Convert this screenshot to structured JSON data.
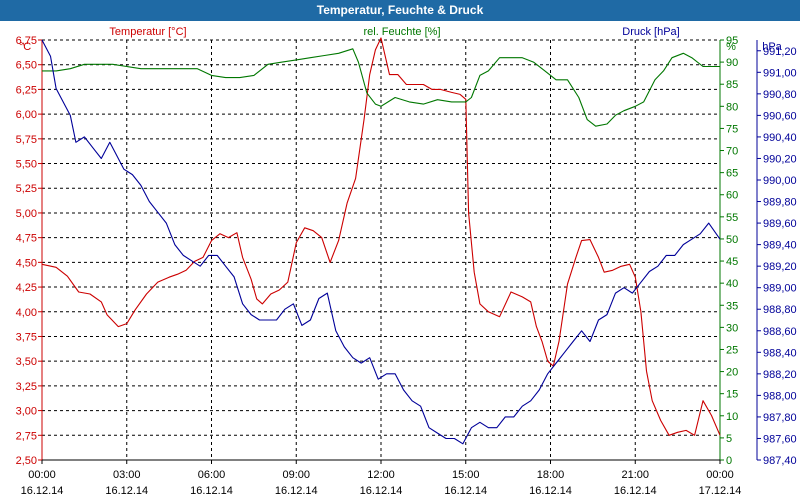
{
  "window": {
    "title": "Temperatur, Feuchte & Druck"
  },
  "colors": {
    "temperature": "#cc0000",
    "humidity": "#007700",
    "pressure": "#000099",
    "title_bar": "#1f6aa5",
    "grid": "#000000"
  },
  "chart_data": {
    "type": "line",
    "title": "Temperatur, Feuchte & Druck",
    "x_ticks": [
      {
        "time": "00:00",
        "date": "16.12.14"
      },
      {
        "time": "03:00",
        "date": "16.12.14"
      },
      {
        "time": "06:00",
        "date": "16.12.14"
      },
      {
        "time": "09:00",
        "date": "16.12.14"
      },
      {
        "time": "12:00",
        "date": "16.12.14"
      },
      {
        "time": "15:00",
        "date": "16.12.14"
      },
      {
        "time": "18:00",
        "date": "16.12.14"
      },
      {
        "time": "21:00",
        "date": "16.12.14"
      },
      {
        "time": "00:00",
        "date": "17.12.14"
      }
    ],
    "xlim": [
      0,
      24
    ],
    "axes": {
      "temperature": {
        "label": "Temperatur [°C]",
        "unit": "°C",
        "ylim": [
          2.5,
          6.75
        ],
        "ticks": [
          "2,50",
          "2,75",
          "3,00",
          "3,25",
          "3,50",
          "3,75",
          "4,00",
          "4,25",
          "4,50",
          "4,75",
          "5,00",
          "5,25",
          "5,50",
          "5,75",
          "6,00",
          "6,25",
          "6,50",
          "6,75"
        ]
      },
      "humidity": {
        "label": "rel. Feuchte [%]",
        "unit": "%",
        "ylim": [
          0,
          95
        ],
        "ticks": [
          "0",
          "5",
          "10",
          "15",
          "20",
          "25",
          "30",
          "35",
          "40",
          "45",
          "50",
          "55",
          "60",
          "65",
          "70",
          "75",
          "80",
          "85",
          "90",
          "95"
        ]
      },
      "pressure": {
        "label": "Druck [hPa]",
        "unit": "hPa",
        "ylim": [
          987.4,
          991.3
        ],
        "ticks": [
          "987,40",
          "987,60",
          "987,80",
          "988,00",
          "988,20",
          "988,40",
          "988,60",
          "988,80",
          "989,00",
          "989,20",
          "989,40",
          "989,60",
          "989,80",
          "990,00",
          "990,20",
          "990,40",
          "990,60",
          "990,80",
          "991,00",
          "991,20"
        ]
      }
    },
    "series": [
      {
        "name": "Temperatur",
        "axis": "temperature",
        "x": [
          0,
          0.5,
          0.9,
          1.3,
          1.7,
          2.1,
          2.3,
          2.7,
          3.0,
          3.3,
          3.7,
          4.1,
          4.5,
          4.8,
          5.1,
          5.4,
          5.7,
          6.0,
          6.3,
          6.6,
          6.9,
          7.1,
          7.4,
          7.6,
          7.8,
          8.1,
          8.4,
          8.7,
          9.0,
          9.3,
          9.6,
          9.9,
          10.2,
          10.5,
          10.8,
          11.1,
          11.4,
          11.6,
          11.8,
          12.0,
          12.3,
          12.6,
          12.9,
          13.2,
          13.5,
          13.8,
          14.1,
          14.5,
          14.8,
          15.0,
          15.1,
          15.3,
          15.5,
          15.8,
          16.2,
          16.6,
          17.0,
          17.3,
          17.5,
          17.7,
          17.9,
          18.1,
          18.3,
          18.6,
          18.9,
          19.1,
          19.4,
          19.7,
          19.9,
          20.2,
          20.5,
          20.8,
          21.0,
          21.2,
          21.4,
          21.6,
          21.9,
          22.2,
          22.5,
          22.8,
          23.1,
          23.4,
          23.7,
          24.0
        ],
        "y": [
          4.48,
          4.45,
          4.36,
          4.2,
          4.18,
          4.1,
          3.97,
          3.85,
          3.88,
          4.02,
          4.18,
          4.3,
          4.35,
          4.38,
          4.42,
          4.51,
          4.55,
          4.72,
          4.79,
          4.75,
          4.8,
          4.55,
          4.33,
          4.13,
          4.08,
          4.18,
          4.22,
          4.3,
          4.7,
          4.85,
          4.82,
          4.75,
          4.5,
          4.72,
          5.1,
          5.35,
          5.95,
          6.4,
          6.65,
          6.77,
          6.4,
          6.4,
          6.3,
          6.3,
          6.3,
          6.25,
          6.25,
          6.22,
          6.2,
          6.15,
          5.0,
          4.4,
          4.08,
          4.0,
          3.95,
          4.2,
          4.15,
          4.1,
          3.85,
          3.7,
          3.5,
          3.45,
          3.7,
          4.28,
          4.55,
          4.72,
          4.73,
          4.55,
          4.4,
          4.42,
          4.46,
          4.48,
          4.35,
          4.0,
          3.4,
          3.1,
          2.9,
          2.75,
          2.78,
          2.8,
          2.75,
          3.1,
          2.95,
          2.75
        ]
      },
      {
        "name": "rel. Feuchte",
        "axis": "humidity",
        "x": [
          0,
          0.5,
          1.0,
          1.5,
          2.0,
          2.5,
          3.0,
          3.5,
          4.0,
          4.5,
          5.0,
          5.5,
          6.0,
          6.5,
          7.0,
          7.5,
          8.0,
          8.5,
          9.0,
          9.5,
          10.0,
          10.5,
          11.0,
          11.2,
          11.5,
          11.8,
          12.0,
          12.5,
          13.0,
          13.5,
          14.0,
          14.5,
          15.0,
          15.2,
          15.5,
          15.8,
          16.2,
          16.6,
          17.0,
          17.4,
          17.8,
          18.2,
          18.6,
          19.0,
          19.3,
          19.6,
          20.0,
          20.3,
          20.6,
          21.0,
          21.3,
          21.7,
          22.0,
          22.3,
          22.7,
          23.0,
          23.4,
          23.7,
          24.0
        ],
        "y": [
          88,
          88,
          88.5,
          89.5,
          89.5,
          89.5,
          89,
          88.5,
          88.5,
          88.5,
          88.5,
          88.5,
          87,
          86.5,
          86.5,
          87,
          89.5,
          90,
          90.5,
          91,
          91.5,
          92,
          93,
          90,
          83,
          80.5,
          80,
          82,
          81,
          80.5,
          81.5,
          81,
          81,
          82,
          87,
          88,
          91,
          91,
          91,
          90,
          88,
          86,
          86,
          82,
          77,
          75.5,
          76,
          78,
          79,
          80,
          81,
          86,
          88,
          91,
          92,
          91,
          89,
          89,
          89
        ]
      },
      {
        "name": "Druck",
        "axis": "pressure",
        "x": [
          0,
          0.3,
          0.5,
          0.8,
          1.0,
          1.2,
          1.5,
          1.8,
          2.1,
          2.4,
          2.6,
          2.9,
          3.2,
          3.5,
          3.8,
          4.1,
          4.4,
          4.7,
          5.0,
          5.3,
          5.6,
          5.9,
          6.2,
          6.5,
          6.8,
          7.1,
          7.4,
          7.7,
          8.0,
          8.3,
          8.6,
          8.9,
          9.2,
          9.5,
          9.8,
          10.1,
          10.4,
          10.7,
          11.0,
          11.3,
          11.6,
          11.9,
          12.2,
          12.5,
          12.8,
          13.1,
          13.4,
          13.7,
          14.0,
          14.3,
          14.6,
          14.9,
          15.2,
          15.5,
          15.8,
          16.1,
          16.4,
          16.7,
          17.0,
          17.3,
          17.6,
          17.9,
          18.2,
          18.5,
          18.8,
          19.1,
          19.4,
          19.7,
          20.0,
          20.3,
          20.6,
          20.9,
          21.2,
          21.5,
          21.8,
          22.1,
          22.4,
          22.7,
          23.0,
          23.3,
          23.6,
          24.0
        ],
        "y": [
          991.3,
          991.15,
          990.85,
          990.7,
          990.6,
          990.35,
          990.4,
          990.3,
          990.2,
          990.35,
          990.25,
          990.1,
          990.05,
          989.95,
          989.8,
          989.7,
          989.6,
          989.4,
          989.3,
          989.25,
          989.2,
          989.3,
          989.3,
          989.2,
          989.1,
          988.85,
          988.75,
          988.7,
          988.7,
          988.7,
          988.8,
          988.85,
          988.65,
          988.7,
          988.9,
          988.95,
          988.6,
          988.45,
          988.35,
          988.3,
          988.35,
          988.15,
          988.2,
          988.2,
          988.05,
          987.95,
          987.9,
          987.7,
          987.65,
          987.6,
          987.6,
          987.55,
          987.7,
          987.75,
          987.7,
          987.7,
          987.8,
          987.8,
          987.9,
          987.95,
          988.05,
          988.2,
          988.3,
          988.4,
          988.5,
          988.6,
          988.5,
          988.7,
          988.75,
          988.95,
          989.0,
          988.95,
          989.05,
          989.15,
          989.2,
          989.3,
          989.3,
          989.4,
          989.45,
          989.5,
          989.6,
          989.45
        ]
      }
    ]
  }
}
